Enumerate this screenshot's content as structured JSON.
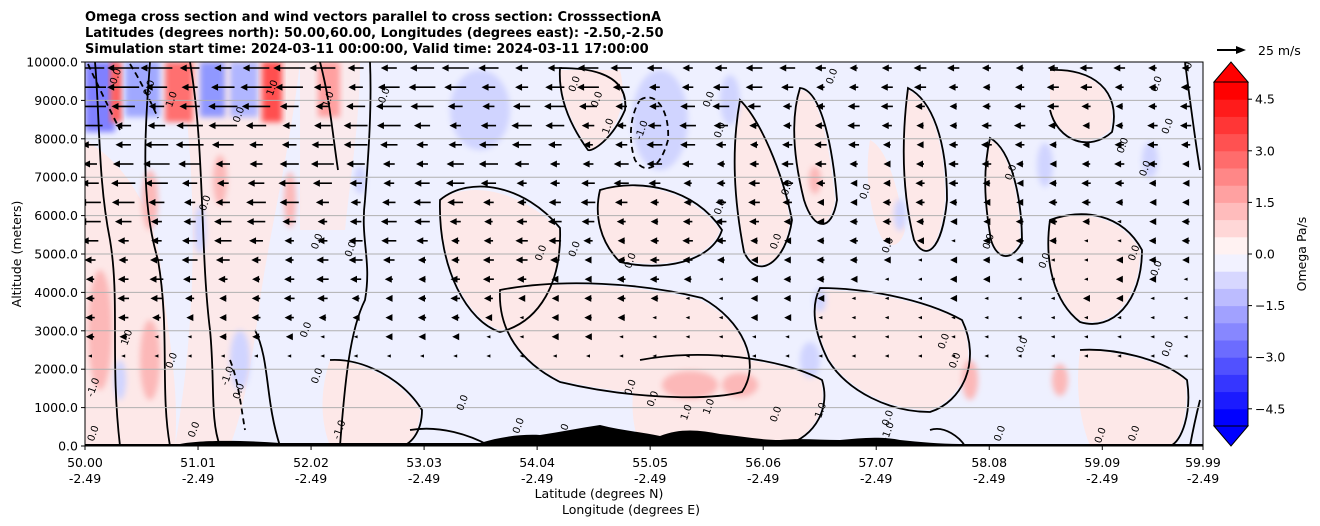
{
  "chart_data": {
    "type": "contourf_with_vectors",
    "title_lines": [
      "Omega cross section and wind vectors parallel to cross section: CrosssectionA",
      "Latitudes (degrees north): 50.00,60.00, Longitudes (degrees east): -2.50,-2.50",
      "Simulation start time: 2024-03-11 00:00:00, Valid time: 2024-03-11 17:00:00"
    ],
    "xlabel": "Latitude (degrees N)",
    "xlabel2": "Longitude (degrees E)",
    "ylabel": "Altitude (meters)",
    "xlim": [
      50.0,
      59.99
    ],
    "ylim": [
      0,
      10000
    ],
    "x_ticks": [
      {
        "lat": "50.00",
        "lon": "-2.49",
        "v": 50.0
      },
      {
        "lat": "51.01",
        "lon": "-2.49",
        "v": 51.01
      },
      {
        "lat": "52.02",
        "lon": "-2.49",
        "v": 52.02
      },
      {
        "lat": "53.03",
        "lon": "-2.49",
        "v": 53.03
      },
      {
        "lat": "54.04",
        "lon": "-2.49",
        "v": 54.04
      },
      {
        "lat": "55.05",
        "lon": "-2.49",
        "v": 55.05
      },
      {
        "lat": "56.06",
        "lon": "-2.49",
        "v": 56.06
      },
      {
        "lat": "57.07",
        "lon": "-2.49",
        "v": 57.07
      },
      {
        "lat": "58.08",
        "lon": "-2.49",
        "v": 58.08
      },
      {
        "lat": "59.09",
        "lon": "-2.49",
        "v": 59.09
      },
      {
        "lat": "59.99",
        "lon": "-2.49",
        "v": 59.99
      }
    ],
    "y_ticks": [
      {
        "label": "0.0",
        "v": 0
      },
      {
        "label": "1000.0",
        "v": 1000
      },
      {
        "label": "2000.0",
        "v": 2000
      },
      {
        "label": "3000.0",
        "v": 3000
      },
      {
        "label": "4000.0",
        "v": 4000
      },
      {
        "label": "5000.0",
        "v": 5000
      },
      {
        "label": "6000.0",
        "v": 6000
      },
      {
        "label": "7000.0",
        "v": 7000
      },
      {
        "label": "8000.0",
        "v": 8000
      },
      {
        "label": "9000.0",
        "v": 9000
      },
      {
        "label": "10000.0",
        "v": 10000
      }
    ],
    "grid": "horizontal",
    "colorbar": {
      "label": "Omega Pa/s",
      "range": [
        -5.0,
        5.0
      ],
      "extend": "both",
      "ticks": [
        {
          "label": "4.5",
          "v": 4.5
        },
        {
          "label": "3.0",
          "v": 3.0
        },
        {
          "label": "1.5",
          "v": 1.5
        },
        {
          "label": "0.0",
          "v": 0.0
        },
        {
          "label": "−1.5",
          "v": -1.5
        },
        {
          "label": "−3.0",
          "v": -3.0
        },
        {
          "label": "−4.5",
          "v": -4.5
        }
      ],
      "colors": {
        "neg_max": "#0000ff",
        "zero": "#ffffff",
        "pos_max": "#ff0000"
      }
    },
    "quiver_key": {
      "label": "25 m/s",
      "speed": 25
    },
    "contour_labels": [
      {
        "text": "0.0",
        "x": 50.3,
        "y": 9600
      },
      {
        "text": "0.0",
        "x": 50.6,
        "y": 9300
      },
      {
        "text": "1.0",
        "x": 50.8,
        "y": 9000
      },
      {
        "text": "0.0",
        "x": 51.4,
        "y": 8600
      },
      {
        "text": "1.0",
        "x": 51.7,
        "y": 9300
      },
      {
        "text": "1.0",
        "x": 52.2,
        "y": 9000
      },
      {
        "text": "0.0",
        "x": 52.7,
        "y": 9100
      },
      {
        "text": "0.0",
        "x": 54.4,
        "y": 9400
      },
      {
        "text": "0.0",
        "x": 54.6,
        "y": 9000
      },
      {
        "text": "1.0",
        "x": 54.7,
        "y": 8300
      },
      {
        "text": "-1.0",
        "x": 55.0,
        "y": 8200
      },
      {
        "text": "0.0",
        "x": 55.6,
        "y": 9000
      },
      {
        "text": "0.0",
        "x": 55.7,
        "y": 8200
      },
      {
        "text": "0.0",
        "x": 56.7,
        "y": 9600
      },
      {
        "text": "0.0",
        "x": 59.6,
        "y": 9400
      },
      {
        "text": "0.0",
        "x": 59.9,
        "y": 10000
      },
      {
        "text": "0.0",
        "x": 59.7,
        "y": 8300
      },
      {
        "text": "0.0",
        "x": 59.3,
        "y": 7800
      },
      {
        "text": "0.0",
        "x": 59.5,
        "y": 7200
      },
      {
        "text": "0.0",
        "x": 58.3,
        "y": 7100
      },
      {
        "text": "0.0",
        "x": 57.0,
        "y": 6600
      },
      {
        "text": "0.0",
        "x": 56.3,
        "y": 6700
      },
      {
        "text": "0.0",
        "x": 55.7,
        "y": 6200
      },
      {
        "text": "0.0",
        "x": 51.1,
        "y": 6300
      },
      {
        "text": "0.0",
        "x": 52.1,
        "y": 5300
      },
      {
        "text": "0.0",
        "x": 52.4,
        "y": 5100
      },
      {
        "text": "0.0",
        "x": 54.1,
        "y": 5000
      },
      {
        "text": "0.0",
        "x": 54.9,
        "y": 4800
      },
      {
        "text": "0.0",
        "x": 54.4,
        "y": 5100
      },
      {
        "text": "0.0",
        "x": 56.2,
        "y": 5300
      },
      {
        "text": "0.0",
        "x": 57.2,
        "y": 5200
      },
      {
        "text": "0.0",
        "x": 58.1,
        "y": 5300
      },
      {
        "text": "0.0",
        "x": 58.6,
        "y": 4800
      },
      {
        "text": "0.0",
        "x": 59.4,
        "y": 5000
      },
      {
        "text": "0.0",
        "x": 59.6,
        "y": 4600
      },
      {
        "text": "1.0",
        "x": 50.4,
        "y": 2800
      },
      {
        "text": "0.0",
        "x": 50.8,
        "y": 2200
      },
      {
        "text": "0.0",
        "x": 52.0,
        "y": 3000
      },
      {
        "text": "0.0",
        "x": 52.1,
        "y": 1800
      },
      {
        "text": "-1.0",
        "x": 51.3,
        "y": 1800
      },
      {
        "text": "0.0",
        "x": 51.4,
        "y": 1400
      },
      {
        "text": "-1.0",
        "x": 50.1,
        "y": 1500
      },
      {
        "text": "0.0",
        "x": 57.8,
        "y": 2200
      },
      {
        "text": "0.0",
        "x": 57.7,
        "y": 2700
      },
      {
        "text": "0.0",
        "x": 58.4,
        "y": 2600
      },
      {
        "text": "0.0",
        "x": 59.7,
        "y": 2500
      },
      {
        "text": "0.0",
        "x": 53.4,
        "y": 1100
      },
      {
        "text": "0.0",
        "x": 54.9,
        "y": 1500
      },
      {
        "text": "0.0",
        "x": 55.1,
        "y": 1200
      },
      {
        "text": "1.0",
        "x": 55.6,
        "y": 1000
      },
      {
        "text": "1.0",
        "x": 56.6,
        "y": 900
      },
      {
        "text": "1.0",
        "x": 55.4,
        "y": 850
      },
      {
        "text": "0.0",
        "x": 56.2,
        "y": 800
      },
      {
        "text": "0.0",
        "x": 57.2,
        "y": 700
      },
      {
        "text": "0.0",
        "x": 58.2,
        "y": 300
      },
      {
        "text": "0.0",
        "x": 59.1,
        "y": 250
      },
      {
        "text": "0.0",
        "x": 59.4,
        "y": 300
      },
      {
        "text": "-1.0",
        "x": 52.3,
        "y": 400
      },
      {
        "text": "0.0",
        "x": 53.9,
        "y": 500
      },
      {
        "text": "1.0",
        "x": 54.3,
        "y": 350
      },
      {
        "text": "1.0",
        "x": 54.6,
        "y": 300
      },
      {
        "text": "-1.0",
        "x": 57.2,
        "y": 350
      },
      {
        "text": "0.0",
        "x": 50.1,
        "y": 300
      },
      {
        "text": "0.0",
        "x": 51.0,
        "y": 400
      }
    ]
  }
}
